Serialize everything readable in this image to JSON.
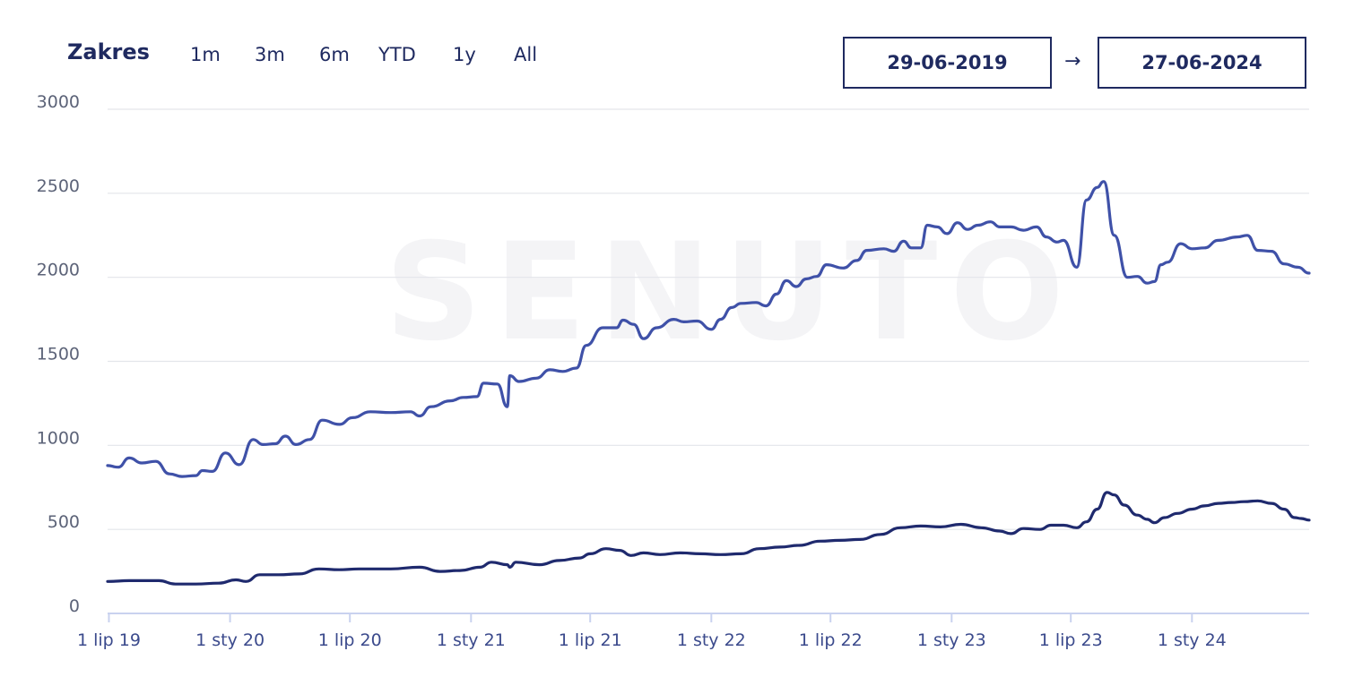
{
  "range_selector": {
    "label": "Zakres",
    "buttons": [
      "1m",
      "3m",
      "6m",
      "YTD",
      "1y",
      "All"
    ]
  },
  "date_range": {
    "from": "29-06-2019",
    "arrow": "→",
    "to": "27-06-2024"
  },
  "watermark": "SENUTO",
  "colors": {
    "series_upper": "#3f51a8",
    "series_lower": "#1f2a6e",
    "grid": "#e3e5ea",
    "axis": "#c9d2ef"
  },
  "chart_data": {
    "type": "line",
    "x_range": [
      "2019-06-29",
      "2024-06-27"
    ],
    "ylim": [
      0,
      3000
    ],
    "yticks": [
      0,
      500,
      1000,
      1500,
      2000,
      2500,
      3000
    ],
    "xticks": [
      {
        "date": "2019-07-01",
        "label": "1 lip 19"
      },
      {
        "date": "2020-01-01",
        "label": "1 sty 20"
      },
      {
        "date": "2020-07-01",
        "label": "1 lip 20"
      },
      {
        "date": "2021-01-01",
        "label": "1 sty 21"
      },
      {
        "date": "2021-07-01",
        "label": "1 lip 21"
      },
      {
        "date": "2022-01-01",
        "label": "1 sty 22"
      },
      {
        "date": "2022-07-01",
        "label": "1 lip 22"
      },
      {
        "date": "2023-01-01",
        "label": "1 sty 23"
      },
      {
        "date": "2023-07-01",
        "label": "1 lip 23"
      },
      {
        "date": "2024-01-01",
        "label": "1 sty 24"
      }
    ],
    "grid": true,
    "series": [
      {
        "key": "upper",
        "points": [
          [
            "2019-06-29",
            880
          ],
          [
            "2019-07-15",
            870
          ],
          [
            "2019-08-01",
            925
          ],
          [
            "2019-08-20",
            895
          ],
          [
            "2019-09-10",
            905
          ],
          [
            "2019-10-01",
            830
          ],
          [
            "2019-10-20",
            815
          ],
          [
            "2019-11-10",
            820
          ],
          [
            "2019-11-20",
            850
          ],
          [
            "2019-12-05",
            845
          ],
          [
            "2019-12-25",
            955
          ],
          [
            "2020-01-15",
            885
          ],
          [
            "2020-02-05",
            1035
          ],
          [
            "2020-02-20",
            1005
          ],
          [
            "2020-03-10",
            1010
          ],
          [
            "2020-03-25",
            1055
          ],
          [
            "2020-04-10",
            1005
          ],
          [
            "2020-05-01",
            1035
          ],
          [
            "2020-05-20",
            1150
          ],
          [
            "2020-06-15",
            1125
          ],
          [
            "2020-07-05",
            1165
          ],
          [
            "2020-08-01",
            1200
          ],
          [
            "2020-09-01",
            1195
          ],
          [
            "2020-10-01",
            1200
          ],
          [
            "2020-10-15",
            1175
          ],
          [
            "2020-11-01",
            1230
          ],
          [
            "2020-12-01",
            1265
          ],
          [
            "2020-12-20",
            1285
          ],
          [
            "2021-01-10",
            1290
          ],
          [
            "2021-01-20",
            1370
          ],
          [
            "2021-02-10",
            1365
          ],
          [
            "2021-02-25",
            1230
          ],
          [
            "2021-03-01",
            1415
          ],
          [
            "2021-03-15",
            1380
          ],
          [
            "2021-04-10",
            1400
          ],
          [
            "2021-05-01",
            1450
          ],
          [
            "2021-05-20",
            1440
          ],
          [
            "2021-06-10",
            1460
          ],
          [
            "2021-06-25",
            1595
          ],
          [
            "2021-07-20",
            1700
          ],
          [
            "2021-08-10",
            1700
          ],
          [
            "2021-08-20",
            1745
          ],
          [
            "2021-09-05",
            1720
          ],
          [
            "2021-09-20",
            1635
          ],
          [
            "2021-10-10",
            1700
          ],
          [
            "2021-11-05",
            1750
          ],
          [
            "2021-11-20",
            1735
          ],
          [
            "2021-12-10",
            1740
          ],
          [
            "2022-01-01",
            1690
          ],
          [
            "2022-01-15",
            1750
          ],
          [
            "2022-02-01",
            1820
          ],
          [
            "2022-02-15",
            1845
          ],
          [
            "2022-03-10",
            1850
          ],
          [
            "2022-03-25",
            1830
          ],
          [
            "2022-04-10",
            1900
          ],
          [
            "2022-04-25",
            1980
          ],
          [
            "2022-05-10",
            1945
          ],
          [
            "2022-05-25",
            1990
          ],
          [
            "2022-06-10",
            2005
          ],
          [
            "2022-06-25",
            2075
          ],
          [
            "2022-07-20",
            2055
          ],
          [
            "2022-08-10",
            2100
          ],
          [
            "2022-08-25",
            2160
          ],
          [
            "2022-09-20",
            2170
          ],
          [
            "2022-10-05",
            2155
          ],
          [
            "2022-10-20",
            2215
          ],
          [
            "2022-11-01",
            2175
          ],
          [
            "2022-11-15",
            2175
          ],
          [
            "2022-11-25",
            2310
          ],
          [
            "2022-12-10",
            2300
          ],
          [
            "2022-12-25",
            2260
          ],
          [
            "2023-01-10",
            2325
          ],
          [
            "2023-01-25",
            2285
          ],
          [
            "2023-02-10",
            2310
          ],
          [
            "2023-03-01",
            2330
          ],
          [
            "2023-03-15",
            2300
          ],
          [
            "2023-04-01",
            2300
          ],
          [
            "2023-04-20",
            2280
          ],
          [
            "2023-05-10",
            2300
          ],
          [
            "2023-05-25",
            2240
          ],
          [
            "2023-06-10",
            2210
          ],
          [
            "2023-06-20",
            2220
          ],
          [
            "2023-07-10",
            2060
          ],
          [
            "2023-07-25",
            2460
          ],
          [
            "2023-08-10",
            2535
          ],
          [
            "2023-08-20",
            2570
          ],
          [
            "2023-09-05",
            2250
          ],
          [
            "2023-09-25",
            2000
          ],
          [
            "2023-10-10",
            2005
          ],
          [
            "2023-10-25",
            1965
          ],
          [
            "2023-11-05",
            1975
          ],
          [
            "2023-11-15",
            2075
          ],
          [
            "2023-11-25",
            2090
          ],
          [
            "2023-12-15",
            2200
          ],
          [
            "2024-01-01",
            2170
          ],
          [
            "2024-01-20",
            2175
          ],
          [
            "2024-02-10",
            2220
          ],
          [
            "2024-03-10",
            2240
          ],
          [
            "2024-03-25",
            2250
          ],
          [
            "2024-04-10",
            2160
          ],
          [
            "2024-05-01",
            2155
          ],
          [
            "2024-05-20",
            2080
          ],
          [
            "2024-06-10",
            2060
          ],
          [
            "2024-06-27",
            2025
          ]
        ]
      },
      {
        "key": "lower",
        "points": [
          [
            "2019-06-29",
            190
          ],
          [
            "2019-08-01",
            195
          ],
          [
            "2019-09-15",
            195
          ],
          [
            "2019-10-10",
            175
          ],
          [
            "2019-11-10",
            175
          ],
          [
            "2019-12-15",
            180
          ],
          [
            "2020-01-10",
            200
          ],
          [
            "2020-01-25",
            190
          ],
          [
            "2020-02-15",
            230
          ],
          [
            "2020-03-15",
            230
          ],
          [
            "2020-04-15",
            235
          ],
          [
            "2020-05-15",
            265
          ],
          [
            "2020-06-15",
            260
          ],
          [
            "2020-07-15",
            265
          ],
          [
            "2020-09-01",
            265
          ],
          [
            "2020-10-15",
            275
          ],
          [
            "2020-11-15",
            250
          ],
          [
            "2020-12-15",
            255
          ],
          [
            "2021-01-15",
            275
          ],
          [
            "2021-02-01",
            305
          ],
          [
            "2021-02-25",
            290
          ],
          [
            "2021-03-01",
            275
          ],
          [
            "2021-03-10",
            305
          ],
          [
            "2021-04-15",
            290
          ],
          [
            "2021-05-15",
            315
          ],
          [
            "2021-06-15",
            330
          ],
          [
            "2021-07-01",
            355
          ],
          [
            "2021-07-25",
            385
          ],
          [
            "2021-08-15",
            375
          ],
          [
            "2021-09-01",
            345
          ],
          [
            "2021-09-20",
            360
          ],
          [
            "2021-10-15",
            350
          ],
          [
            "2021-11-15",
            360
          ],
          [
            "2021-12-15",
            355
          ],
          [
            "2022-01-15",
            350
          ],
          [
            "2022-02-15",
            355
          ],
          [
            "2022-03-15",
            385
          ],
          [
            "2022-04-15",
            395
          ],
          [
            "2022-05-15",
            405
          ],
          [
            "2022-06-15",
            430
          ],
          [
            "2022-07-15",
            435
          ],
          [
            "2022-08-15",
            440
          ],
          [
            "2022-09-15",
            470
          ],
          [
            "2022-10-15",
            510
          ],
          [
            "2022-11-15",
            520
          ],
          [
            "2022-12-15",
            515
          ],
          [
            "2023-01-15",
            530
          ],
          [
            "2023-02-15",
            510
          ],
          [
            "2023-03-15",
            490
          ],
          [
            "2023-04-01",
            475
          ],
          [
            "2023-04-20",
            505
          ],
          [
            "2023-05-15",
            500
          ],
          [
            "2023-06-01",
            525
          ],
          [
            "2023-06-20",
            525
          ],
          [
            "2023-07-10",
            510
          ],
          [
            "2023-07-25",
            545
          ],
          [
            "2023-08-10",
            620
          ],
          [
            "2023-08-25",
            720
          ],
          [
            "2023-09-05",
            705
          ],
          [
            "2023-09-20",
            645
          ],
          [
            "2023-10-10",
            585
          ],
          [
            "2023-10-25",
            560
          ],
          [
            "2023-11-05",
            540
          ],
          [
            "2023-11-20",
            570
          ],
          [
            "2023-12-10",
            595
          ],
          [
            "2024-01-01",
            620
          ],
          [
            "2024-01-20",
            640
          ],
          [
            "2024-02-10",
            655
          ],
          [
            "2024-03-01",
            660
          ],
          [
            "2024-03-20",
            665
          ],
          [
            "2024-04-10",
            670
          ],
          [
            "2024-05-01",
            655
          ],
          [
            "2024-05-20",
            620
          ],
          [
            "2024-06-05",
            570
          ],
          [
            "2024-06-15",
            565
          ],
          [
            "2024-06-27",
            555
          ]
        ]
      }
    ]
  }
}
